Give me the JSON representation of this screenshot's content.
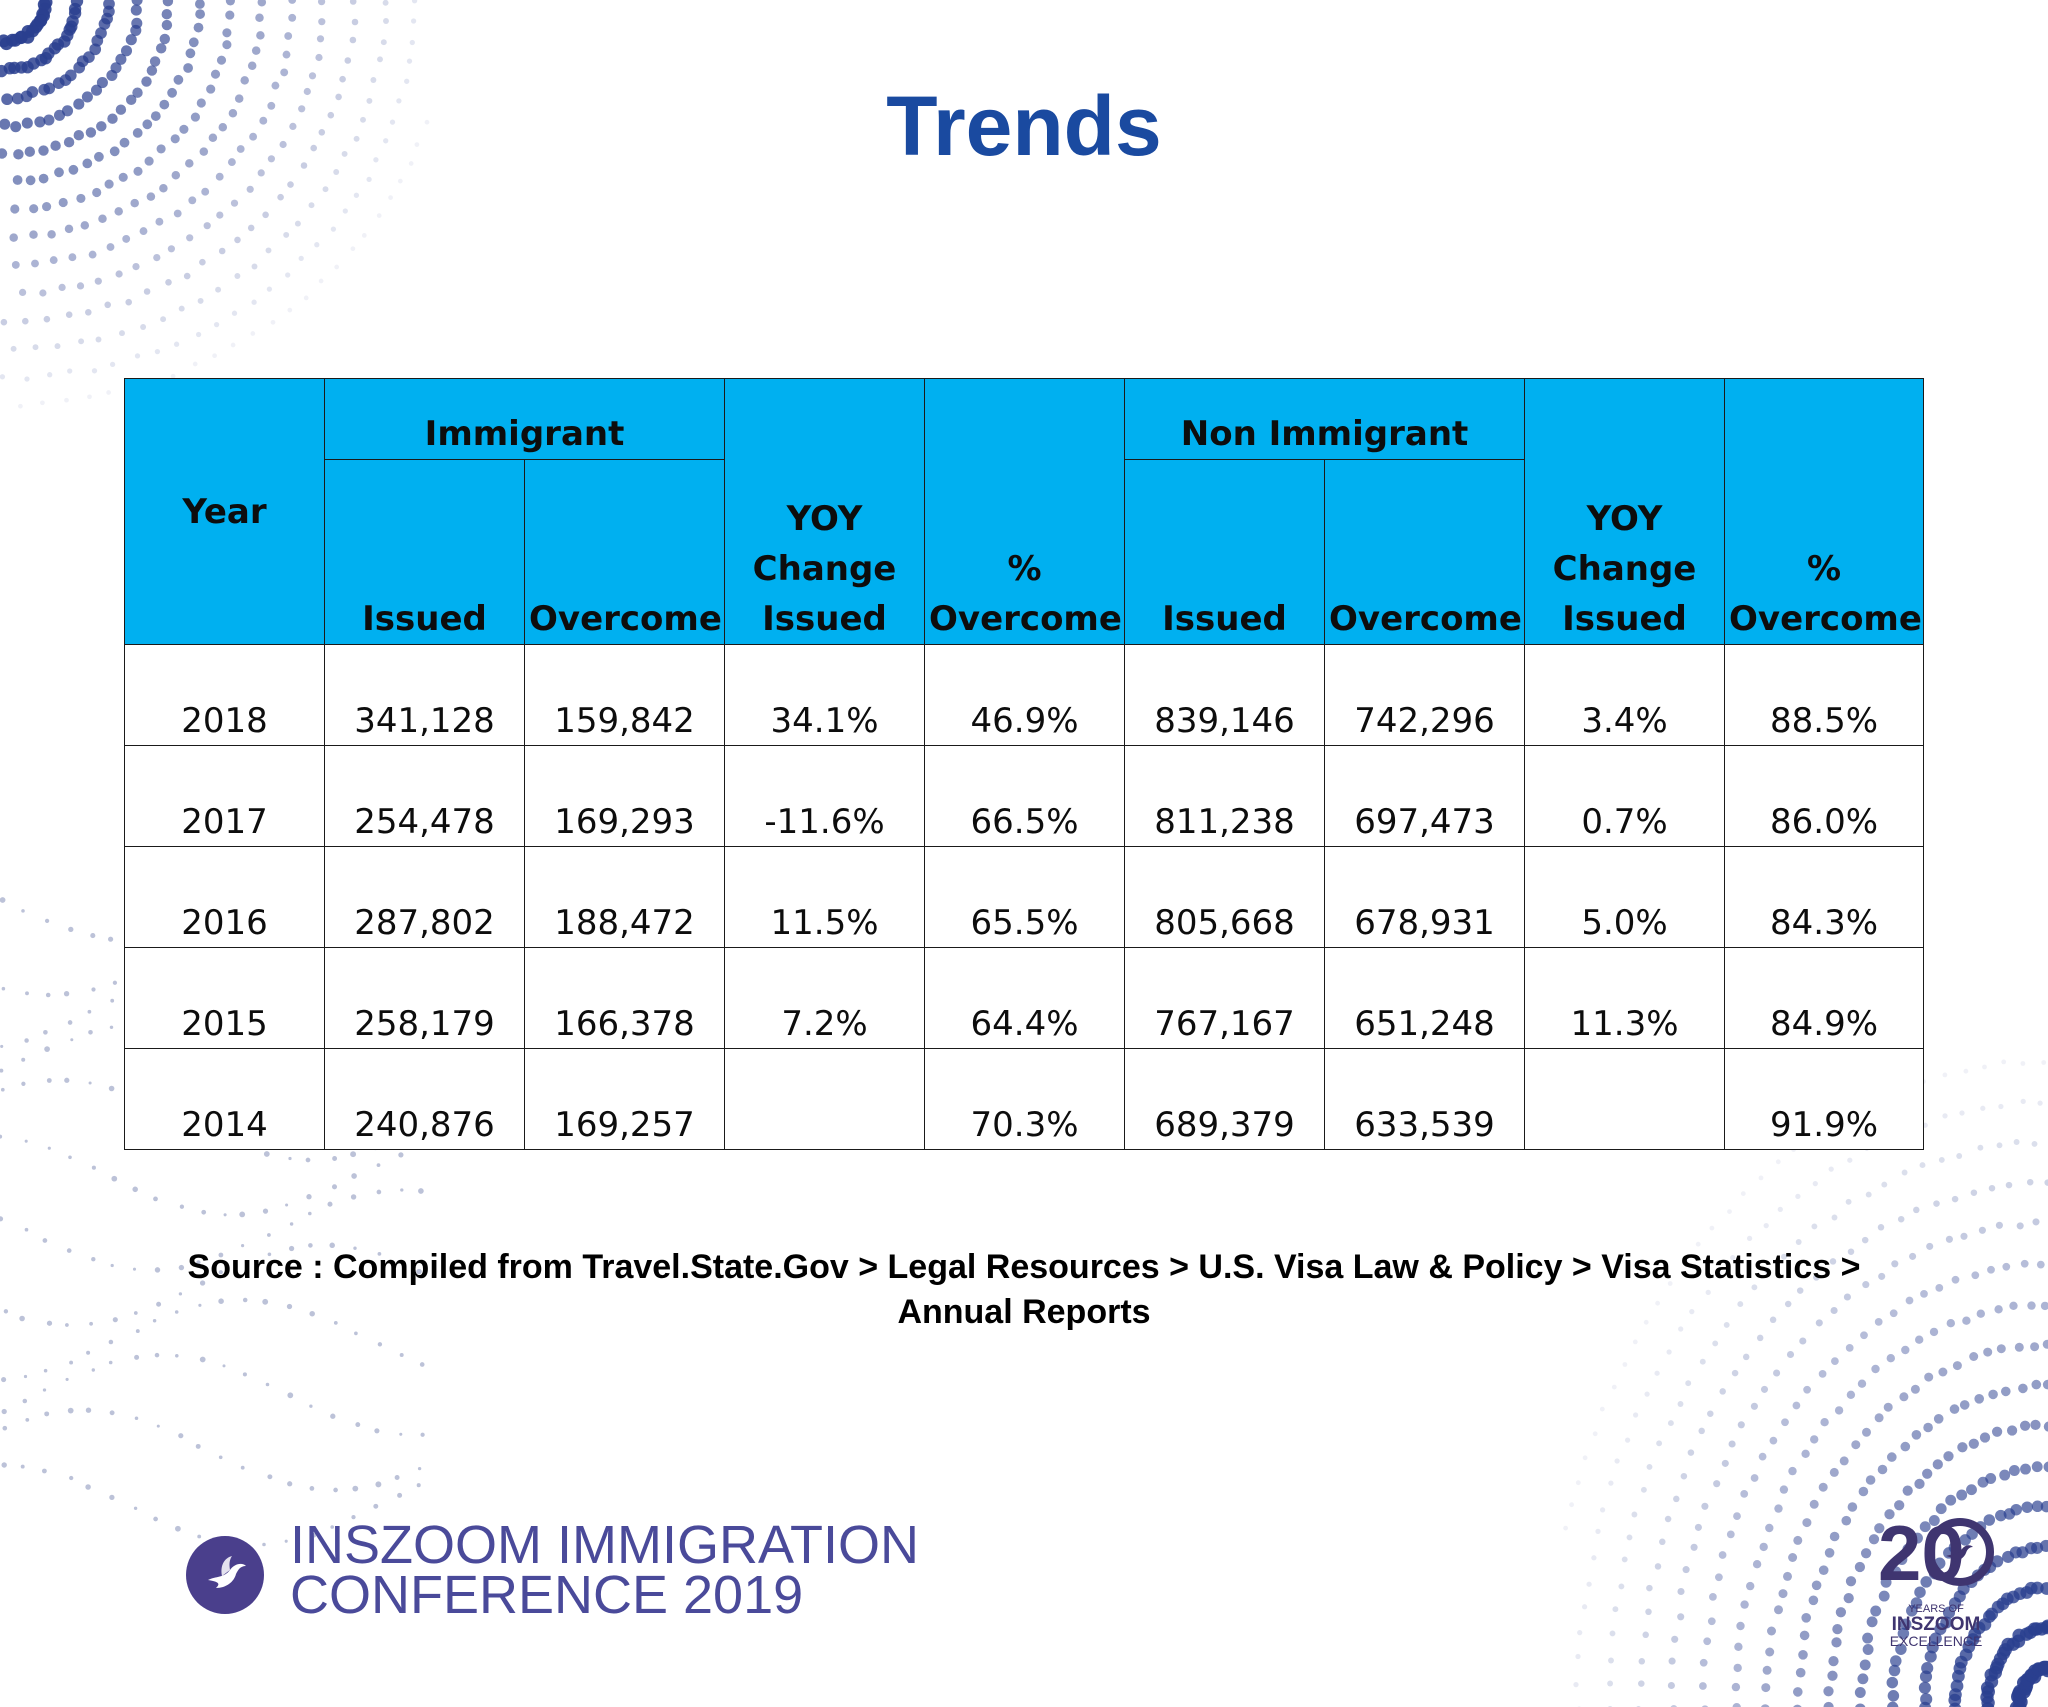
{
  "title": "Trends",
  "colors": {
    "title": "#1a4aa0",
    "header_fill": "#00b0f0",
    "brand_purple": "#4a3f8c",
    "conference_text": "#4a4a9a"
  },
  "table": {
    "year_header": "Year",
    "immigrant_header": "Immigrant",
    "non_immigrant_header": "Non Immigrant",
    "columns": {
      "issued": "Issued",
      "overcome": "Overcome",
      "yoy_line1": "YOY",
      "yoy_line2": "Change",
      "yoy_line3": "Issued",
      "pct_line1": "%",
      "pct_line2": "Overcome"
    },
    "rows": [
      {
        "year": "2018",
        "imm_issued": "341,128",
        "imm_overcome": "159,842",
        "imm_yoy": "34.1%",
        "imm_pct": "46.9%",
        "non_issued": "839,146",
        "non_overcome": "742,296",
        "non_yoy": "3.4%",
        "non_pct": "88.5%"
      },
      {
        "year": "2017",
        "imm_issued": "254,478",
        "imm_overcome": "169,293",
        "imm_yoy": "-11.6%",
        "imm_pct": "66.5%",
        "non_issued": "811,238",
        "non_overcome": "697,473",
        "non_yoy": "0.7%",
        "non_pct": "86.0%"
      },
      {
        "year": "2016",
        "imm_issued": "287,802",
        "imm_overcome": "188,472",
        "imm_yoy": "11.5%",
        "imm_pct": "65.5%",
        "non_issued": "805,668",
        "non_overcome": "678,931",
        "non_yoy": "5.0%",
        "non_pct": "84.3%"
      },
      {
        "year": "2015",
        "imm_issued": "258,179",
        "imm_overcome": "166,378",
        "imm_yoy": "7.2%",
        "imm_pct": "64.4%",
        "non_issued": "767,167",
        "non_overcome": "651,248",
        "non_yoy": "11.3%",
        "non_pct": "84.9%"
      },
      {
        "year": "2014",
        "imm_issued": "240,876",
        "imm_overcome": "169,257",
        "imm_yoy": "",
        "imm_pct": "70.3%",
        "non_issued": "689,379",
        "non_overcome": "633,539",
        "non_yoy": "",
        "non_pct": "91.9%"
      }
    ]
  },
  "source": {
    "line1": "Source : Compiled from Travel.State.Gov > Legal Resources > U.S. Visa Law & Policy > Visa Statistics >",
    "line2": "Annual Reports"
  },
  "footer": {
    "logo_icon": "bird-icon",
    "conference_line1": "INSZOOM IMMIGRATION",
    "conference_line2": "CONFERENCE 2019",
    "badge": {
      "number": "20",
      "line1": "YEARS OF",
      "line2": "INSZOOM",
      "line3": "EXCELLENCE"
    }
  }
}
